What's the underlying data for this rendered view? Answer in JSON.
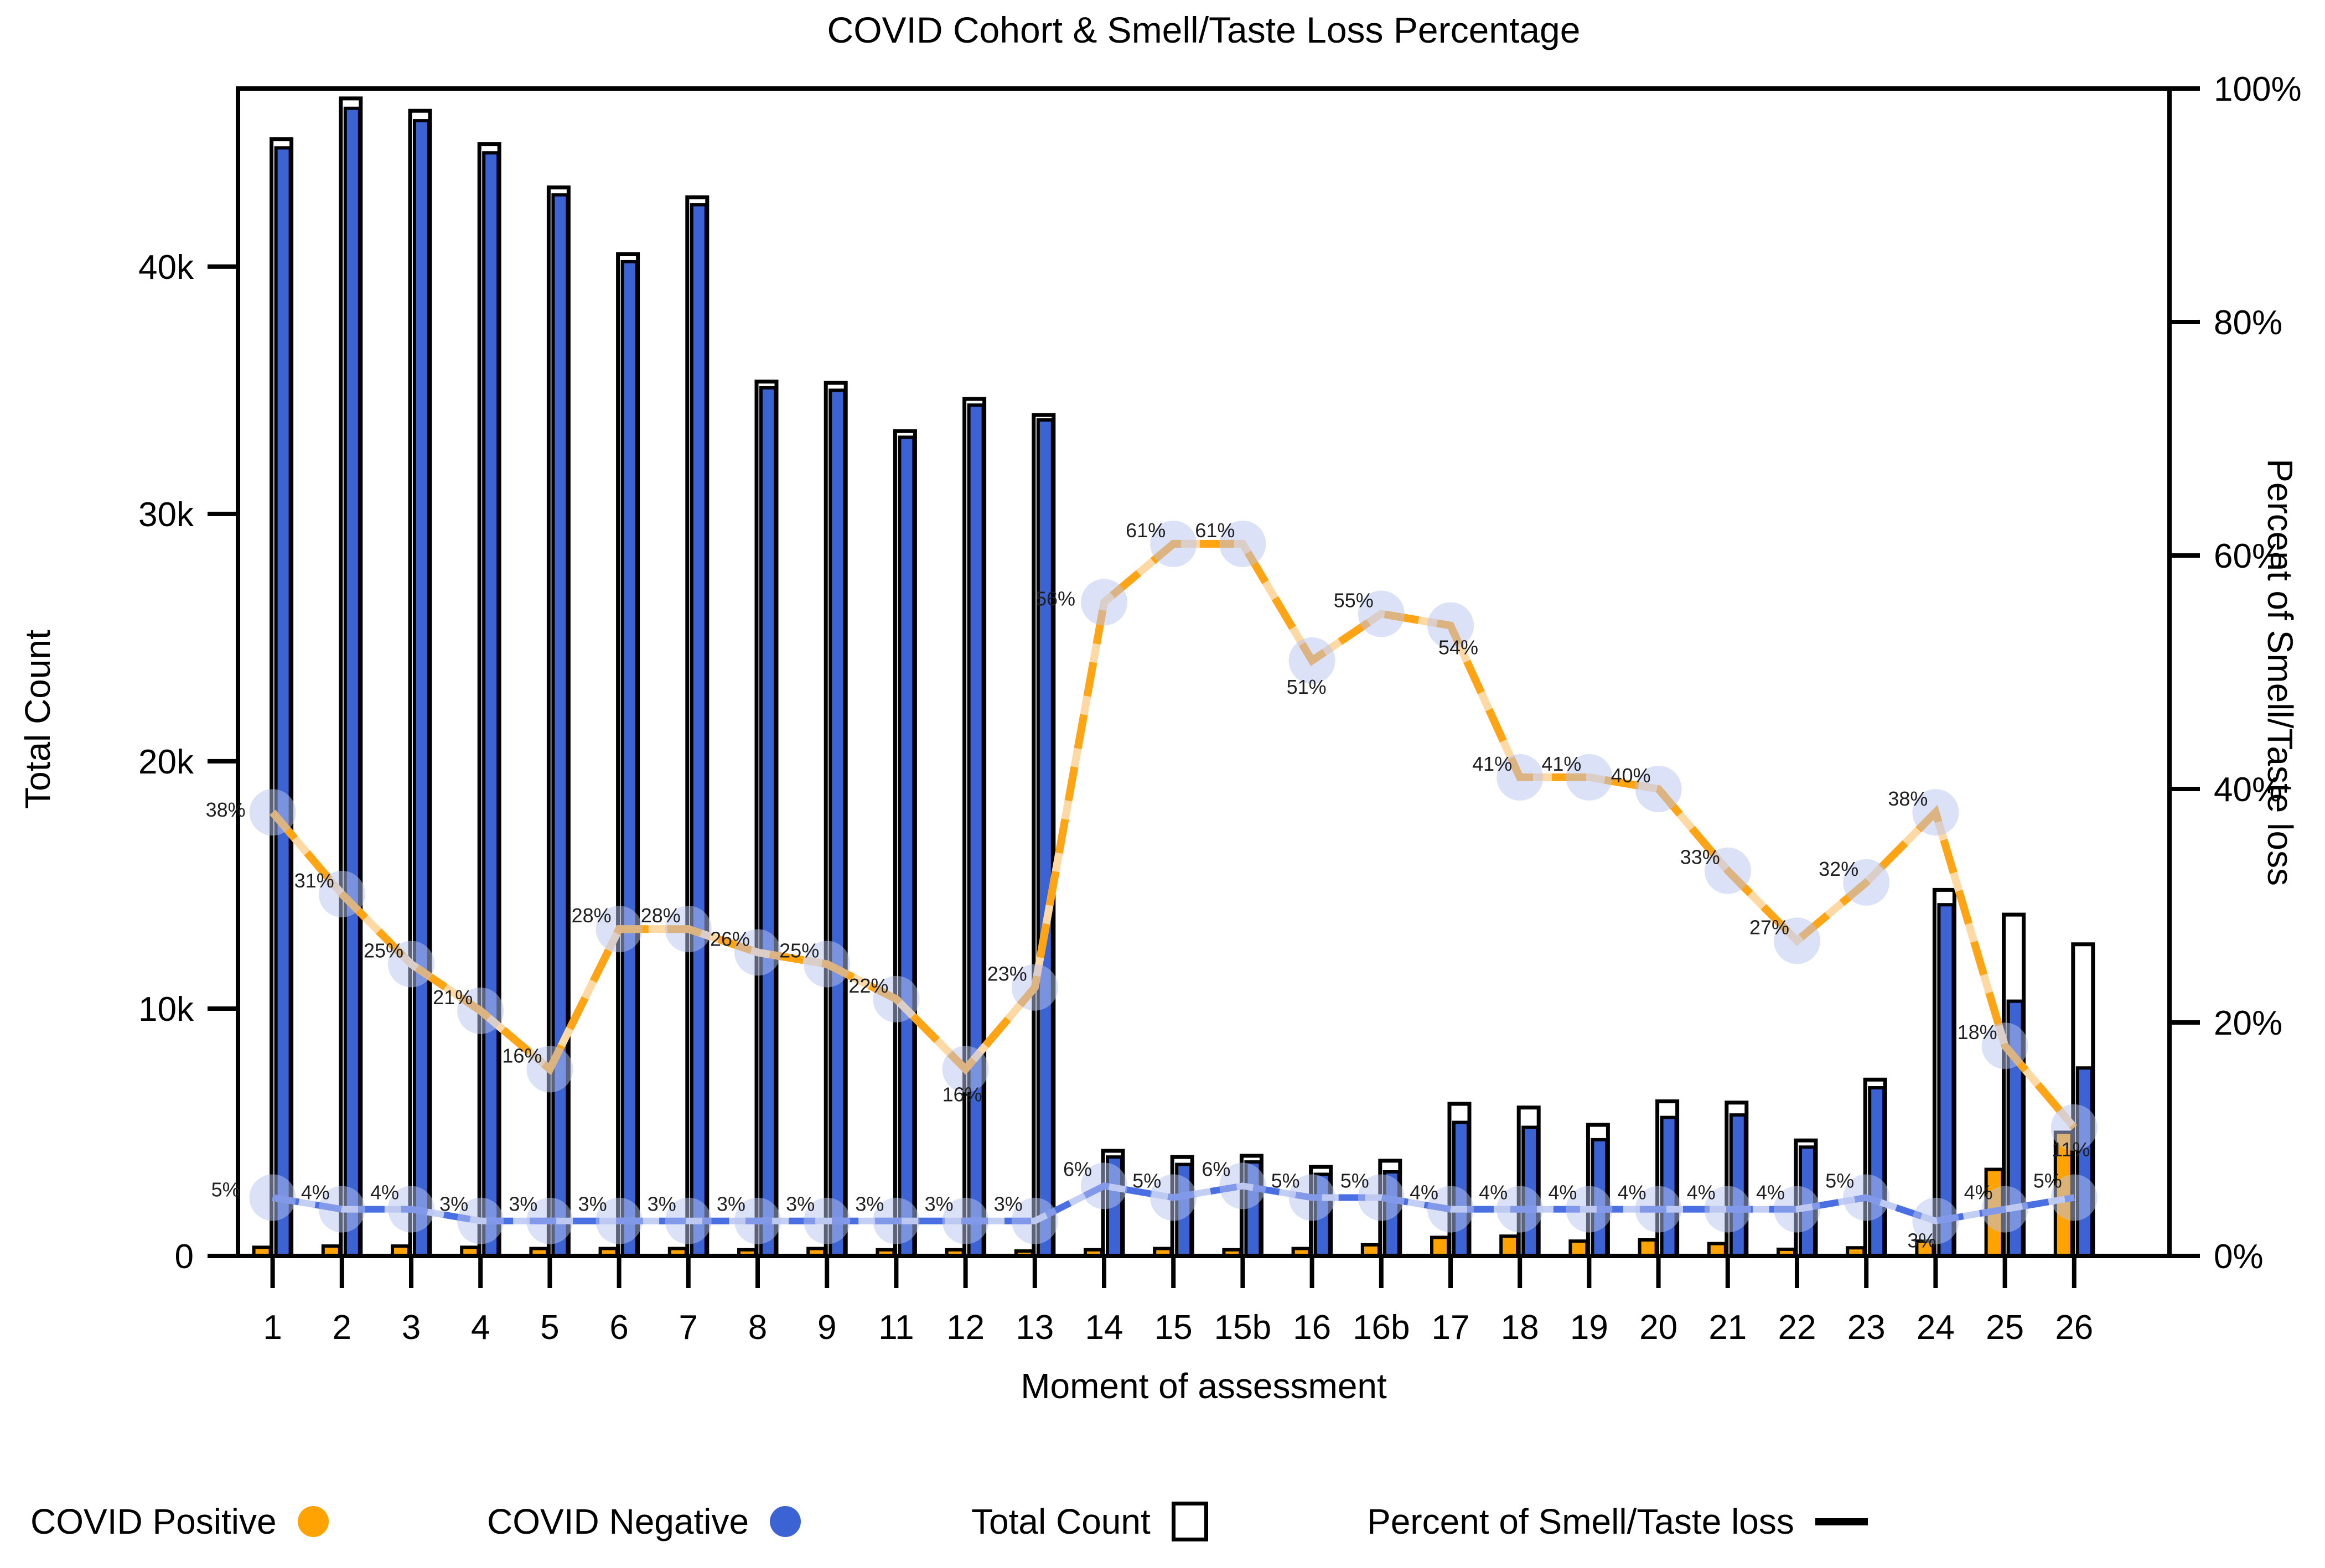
{
  "title": "COVID Cohort & Smell/Taste Loss Percentage",
  "x_axis": {
    "title": "Moment of assessment",
    "categories": [
      "1",
      "2",
      "3",
      "4",
      "5",
      "6",
      "7",
      "8",
      "9",
      "11",
      "12",
      "13",
      "14",
      "15",
      "15b",
      "16",
      "16b",
      "17",
      "18",
      "19",
      "20",
      "21",
      "22",
      "23",
      "24",
      "25",
      "26"
    ]
  },
  "y_axis_left": {
    "title": "Total Count",
    "max": 47200,
    "ticks": [
      {
        "label": "0",
        "value": 0
      },
      {
        "label": "10k",
        "value": 10000
      },
      {
        "label": "20k",
        "value": 20000
      },
      {
        "label": "30k",
        "value": 30000
      },
      {
        "label": "40k",
        "value": 40000
      }
    ]
  },
  "y_axis_right": {
    "title": "Percent of Smell/Taste loss",
    "max": 100,
    "ticks": [
      {
        "label": "0%",
        "value": 0
      },
      {
        "label": "20%",
        "value": 20
      },
      {
        "label": "40%",
        "value": 40
      },
      {
        "label": "60%",
        "value": 60
      },
      {
        "label": "80%",
        "value": 80
      },
      {
        "label": "100%",
        "value": 100
      }
    ]
  },
  "legend": [
    {
      "label": "COVID Positive",
      "marker": "circle",
      "color": "#FFA302"
    },
    {
      "label": "COVID Negative",
      "marker": "circle",
      "color": "#3B63D4"
    },
    {
      "label": "Total Count",
      "marker": "open-square",
      "color": "#000000"
    },
    {
      "label": "Percent of Smell/Taste loss",
      "marker": "line",
      "color": "#000000"
    }
  ],
  "chart_data": {
    "type": "bar+line",
    "title": "COVID Cohort & Smell/Taste Loss Percentage",
    "xlabel": "Moment of assessment",
    "ylabel_left": "Total Count",
    "ylabel_right": "Percent of Smell/Taste loss",
    "ylim_left": [
      0,
      47200
    ],
    "ylim_right": [
      0,
      100
    ],
    "grid": false,
    "legend_position": "bottom",
    "point_label_suffix": "%",
    "marker_color": "#B7C3EE",
    "categories": [
      "1",
      "2",
      "3",
      "4",
      "5",
      "6",
      "7",
      "8",
      "9",
      "11",
      "12",
      "13",
      "14",
      "15",
      "15b",
      "16",
      "16b",
      "17",
      "18",
      "19",
      "20",
      "21",
      "22",
      "23",
      "24",
      "25",
      "26"
    ],
    "series": [
      {
        "name": "COVID Positive",
        "type": "bar",
        "color": "#FFA302",
        "values": [
          350,
          400,
          400,
          350,
          300,
          300,
          300,
          250,
          300,
          250,
          250,
          200,
          250,
          300,
          250,
          300,
          450,
          750,
          800,
          600,
          650,
          500,
          270,
          330,
          600,
          3500,
          5000
        ]
      },
      {
        "name": "COVID Negative",
        "type": "bar",
        "color": "#3B63D4",
        "values": [
          44800,
          46400,
          45900,
          44600,
          42900,
          40200,
          42500,
          35100,
          35000,
          33100,
          34400,
          33800,
          4000,
          3700,
          3800,
          3300,
          3400,
          5400,
          5200,
          4700,
          5600,
          5700,
          4400,
          6800,
          14200,
          10300,
          7600
        ]
      },
      {
        "name": "Total Count",
        "type": "bar",
        "style": "outline",
        "color": "#000000",
        "values": [
          45150,
          46800,
          46300,
          44950,
          43200,
          40500,
          42800,
          35350,
          35300,
          33350,
          34650,
          34000,
          4250,
          4000,
          4050,
          3600,
          3850,
          6150,
          6000,
          5300,
          6250,
          6200,
          4670,
          7130,
          14800,
          13800,
          12600
        ]
      },
      {
        "name": "Percent of Smell/Taste loss (COVID Positive)",
        "type": "line",
        "axis": "right",
        "color": "#FFA415",
        "dash": "dashed",
        "values": [
          38,
          31,
          25,
          21,
          16,
          28,
          28,
          26,
          25,
          22,
          16,
          23,
          56,
          61,
          61,
          51,
          55,
          54,
          41,
          41,
          40,
          33,
          27,
          32,
          38,
          18,
          11
        ]
      },
      {
        "name": "Percent of Smell/Taste loss (COVID Negative)",
        "type": "line",
        "axis": "right",
        "color": "#4A6FE3",
        "dash": "dashed",
        "values": [
          5,
          4,
          4,
          3,
          3,
          3,
          3,
          3,
          3,
          3,
          3,
          3,
          6,
          5,
          6,
          5,
          5,
          4,
          4,
          4,
          4,
          4,
          4,
          5,
          3,
          4,
          5
        ]
      }
    ]
  }
}
